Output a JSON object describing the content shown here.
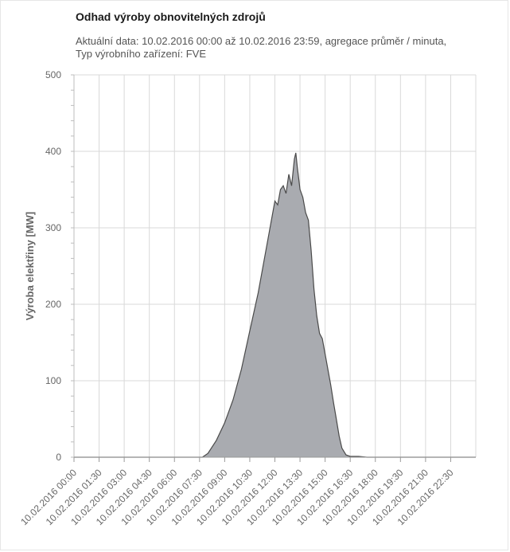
{
  "chart_data": {
    "type": "area",
    "title": "Odhad výroby obnovitelných zdrojů",
    "subtitle": "Aktuální data: 10.02.2016 00:00 až 10.02.2016 23:59, agregace průměr / minuta, Typ výrobního zařízení: FVE",
    "ylabel": "Výroba elektřiny [MW]",
    "xlabel": "",
    "ylim": [
      0,
      500
    ],
    "yticks": [
      0,
      100,
      200,
      300,
      400,
      500
    ],
    "xlim": [
      "10.02.2016 00:00",
      "10.02.2016 24:00"
    ],
    "xtick_labels": [
      "10.02.2016 00:00",
      "10.02.2016 01:30",
      "10.02.2016 03:00",
      "10.02.2016 04:30",
      "10.02.2016 06:00",
      "10.02.2016 07:30",
      "10.02.2016 09:00",
      "10.02.2016 10:30",
      "10.02.2016 12:00",
      "10.02.2016 13:30",
      "10.02.2016 15:00",
      "10.02.2016 16:30",
      "10.02.2016 18:00",
      "10.02.2016 19:30",
      "10.02.2016 21:00",
      "10.02.2016 22:30"
    ],
    "grid": true,
    "fill_color": "#a9abb0",
    "line_color": "#4a4a4a",
    "series": [
      {
        "x": [
          "10.02.2016 00:00",
          "10.02.2016 07:40",
          "10.02.2016 08:00",
          "10.02.2016 08:30",
          "10.02.2016 09:00",
          "10.02.2016 09:30",
          "10.02.2016 10:00",
          "10.02.2016 10:30",
          "10.02.2016 11:00",
          "10.02.2016 11:20",
          "10.02.2016 11:40",
          "10.02.2016 12:00",
          "10.02.2016 12:10",
          "10.02.2016 12:20",
          "10.02.2016 12:30",
          "10.02.2016 12:40",
          "10.02.2016 12:50",
          "10.02.2016 13:00",
          "10.02.2016 13:10",
          "10.02.2016 13:15",
          "10.02.2016 13:20",
          "10.02.2016 13:30",
          "10.02.2016 13:40",
          "10.02.2016 13:50",
          "10.02.2016 14:00",
          "10.02.2016 14:10",
          "10.02.2016 14:20",
          "10.02.2016 14:30",
          "10.02.2016 14:40",
          "10.02.2016 14:50",
          "10.02.2016 15:00",
          "10.02.2016 15:10",
          "10.02.2016 15:20",
          "10.02.2016 15:30",
          "10.02.2016 15:40",
          "10.02.2016 15:50",
          "10.02.2016 16:00",
          "10.02.2016 16:15",
          "10.02.2016 16:30",
          "10.02.2016 17:00",
          "10.02.2016 17:30",
          "10.02.2016 24:00"
        ],
        "values": [
          0,
          0,
          5,
          22,
          45,
          75,
          115,
          165,
          215,
          255,
          295,
          335,
          330,
          350,
          355,
          345,
          370,
          355,
          390,
          398,
          380,
          350,
          340,
          320,
          310,
          270,
          220,
          185,
          162,
          155,
          135,
          115,
          95,
          72,
          50,
          28,
          12,
          3,
          1,
          1,
          0,
          0
        ]
      }
    ]
  }
}
